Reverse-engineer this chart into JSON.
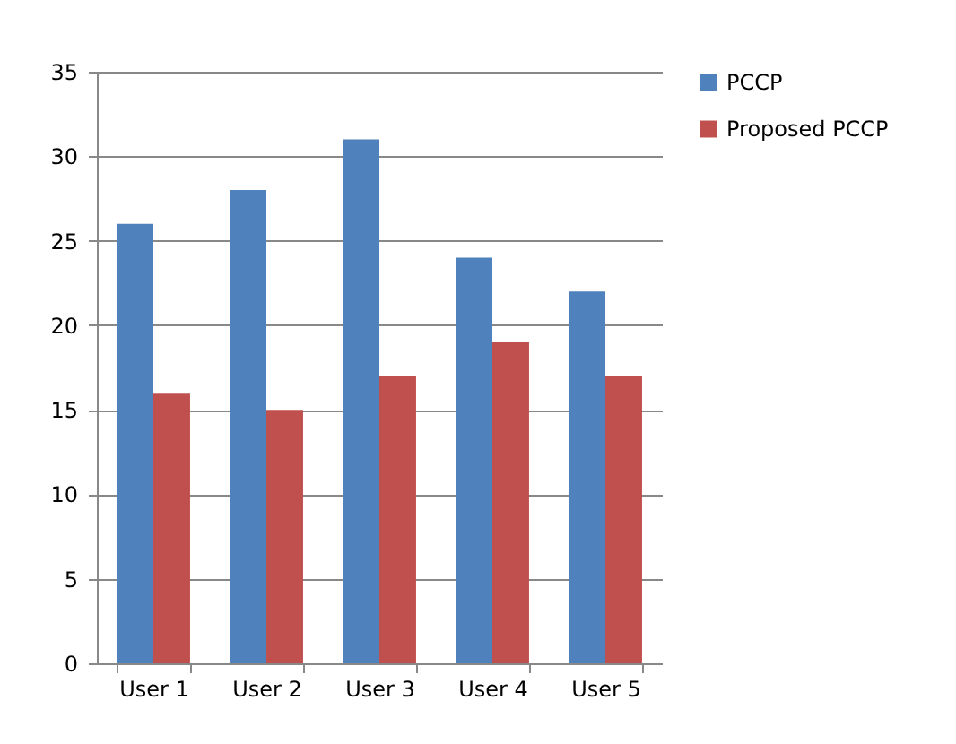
{
  "chart_data": {
    "type": "bar",
    "categories": [
      "User 1",
      "User 2",
      "User 3",
      "User 4",
      "User 5"
    ],
    "series": [
      {
        "name": "PCCP",
        "color": "#4f81bd",
        "values": [
          26,
          28,
          31,
          24,
          22
        ]
      },
      {
        "name": "Proposed PCCP",
        "color": "#c0504d",
        "values": [
          16,
          15,
          17,
          19,
          17
        ]
      }
    ],
    "ylim": [
      0,
      35
    ],
    "yticks": [
      0,
      5,
      10,
      15,
      20,
      25,
      30,
      35
    ],
    "grid": "y",
    "legend": "right"
  }
}
